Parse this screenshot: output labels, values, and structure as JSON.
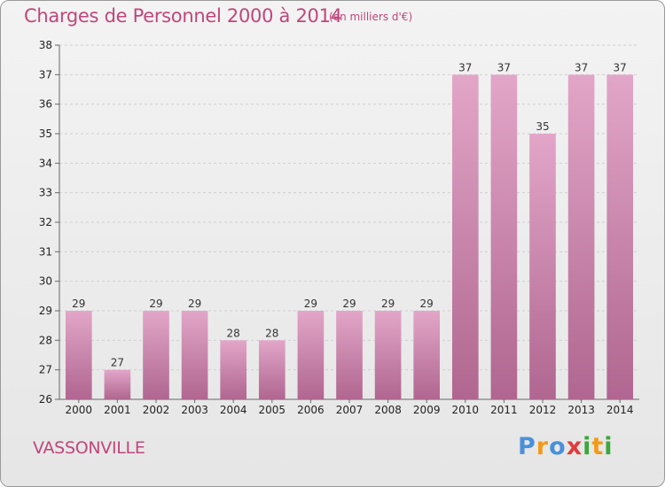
{
  "title": "Charges de Personnel 2000 à 2014",
  "subtitle": "(en milliers d'€)",
  "location": "VASSONVILLE",
  "logo": {
    "letters": [
      "P",
      "r",
      "o",
      "x",
      "i",
      "t",
      "i"
    ],
    "colors": [
      "#4a90d9",
      "#f29a1a",
      "#4a90d9",
      "#e23b3b",
      "#3aa83a",
      "#f29a1a",
      "#3aa83a"
    ]
  },
  "colors": {
    "bar_top": "#e2a6c8",
    "bar_bottom": "#b06690",
    "text_accent": "#c0467b"
  },
  "chart_data": {
    "type": "bar",
    "categories": [
      "2000",
      "2001",
      "2002",
      "2003",
      "2004",
      "2005",
      "2006",
      "2007",
      "2008",
      "2009",
      "2010",
      "2011",
      "2012",
      "2013",
      "2014"
    ],
    "values": [
      29,
      27,
      29,
      29,
      28,
      28,
      29,
      29,
      29,
      29,
      37,
      37,
      35,
      37,
      37
    ],
    "ylim": [
      26,
      38
    ],
    "yticks": [
      26,
      27,
      28,
      29,
      30,
      31,
      32,
      33,
      34,
      35,
      36,
      37,
      38
    ],
    "grid": true
  }
}
